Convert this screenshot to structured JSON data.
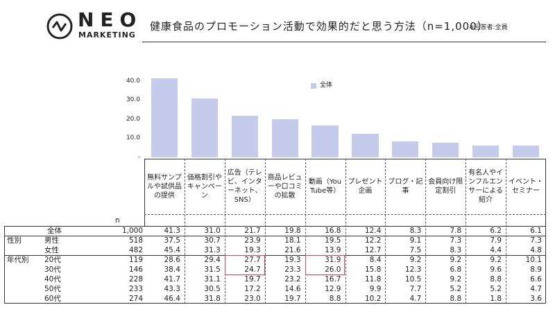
{
  "header": {
    "logo": "NEO",
    "logo_sub": "MARKETING"
  },
  "chart_data": {
    "type": "bar",
    "title": "健康食品のプロモーション活動で効果的だと思う方法（n=1,000）",
    "subtitle": "※回答者:全員",
    "categories": [
      "無料サンプルや試供品の提供",
      "価格割引やキャンペーン",
      "広告（テレビ、インターネット、SNS）",
      "商品レビューや口コミの拡散",
      "動画（YouTube等）",
      "プレゼント企画",
      "ブログ・記事",
      "会員向け限定割引",
      "有名人やインフルエンサーによる紹介",
      "イベント・セミナー"
    ],
    "series": [
      {
        "name": "全体",
        "color": "#c5cbea",
        "values": [
          41.3,
          31.0,
          21.7,
          19.8,
          16.8,
          12.4,
          8.3,
          7.8,
          6.2,
          6.1
        ]
      }
    ],
    "ylim": [
      0,
      45
    ],
    "yticks": [
      {
        "value": 0,
        "label": "-"
      },
      {
        "value": 10,
        "label": "10.0"
      },
      {
        "value": 20,
        "label": "20.0"
      },
      {
        "value": 30,
        "label": "30.0"
      },
      {
        "value": 40,
        "label": "40.0"
      }
    ],
    "legend": "top-center"
  },
  "table": {
    "n_label": "n",
    "rows": [
      {
        "label": "全体",
        "n": "1,000",
        "values": [
          "41.3",
          "31.0",
          "21.7",
          "19.8",
          "16.8",
          "12.4",
          "8.3",
          "7.8",
          "6.2",
          "6.1"
        ]
      },
      {
        "group": "性別",
        "label": "男性",
        "n": "518",
        "values": [
          "37.5",
          "30.7",
          "23.9",
          "18.1",
          "19.5",
          "12.2",
          "9.1",
          "7.3",
          "7.9",
          "7.3"
        ]
      },
      {
        "label": "女性",
        "n": "482",
        "values": [
          "45.4",
          "31.3",
          "19.3",
          "21.6",
          "13.9",
          "12.7",
          "7.5",
          "8.3",
          "4.4",
          "4.8"
        ]
      },
      {
        "group": "年代別",
        "label": "20代",
        "n": "119",
        "values": [
          "28.6",
          "29.4",
          "27.7",
          "19.3",
          "31.9",
          "8.4",
          "9.2",
          "9.2",
          "9.2",
          "10.1"
        ]
      },
      {
        "label": "30代",
        "n": "146",
        "values": [
          "38.4",
          "31.5",
          "24.7",
          "23.3",
          "26.0",
          "15.8",
          "12.3",
          "6.8",
          "9.6",
          "8.9"
        ]
      },
      {
        "label": "40代",
        "n": "228",
        "values": [
          "41.7",
          "31.1",
          "19.7",
          "23.2",
          "16.7",
          "11.8",
          "10.5",
          "9.2",
          "8.8",
          "6.6"
        ]
      },
      {
        "label": "50代",
        "n": "233",
        "values": [
          "43.3",
          "30.5",
          "17.2",
          "14.6",
          "12.9",
          "9.9",
          "7.7",
          "5.2",
          "5.2",
          "4.7"
        ]
      },
      {
        "label": "60代",
        "n": "274",
        "values": [
          "46.4",
          "31.8",
          "23.0",
          "19.7",
          "8.8",
          "10.2",
          "4.7",
          "8.8",
          "1.8",
          "3.6"
        ]
      }
    ]
  }
}
